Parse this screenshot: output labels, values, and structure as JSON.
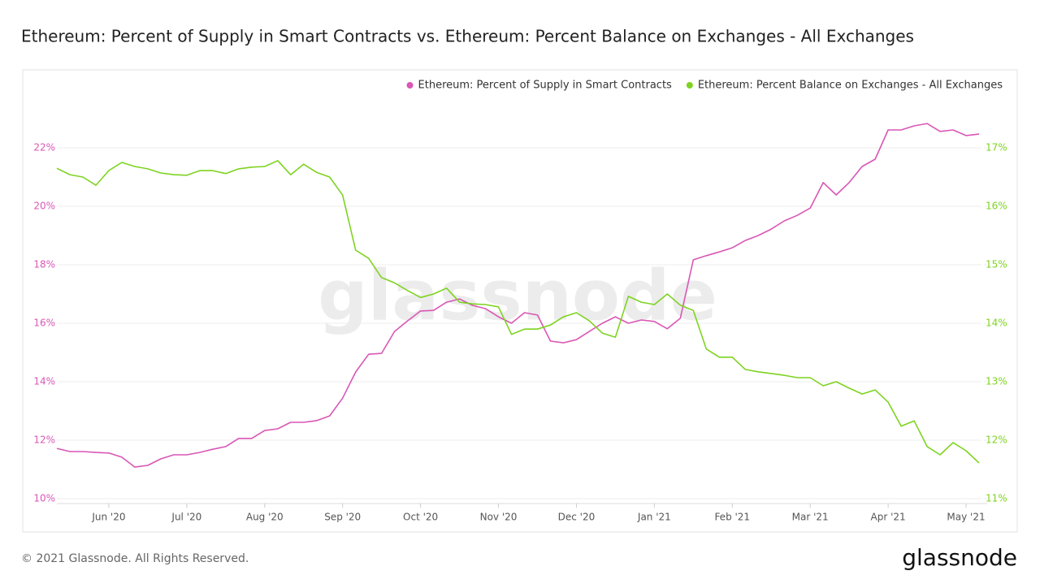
{
  "chart_data": {
    "type": "line",
    "title": "Ethereum: Percent of Supply in Smart Contracts vs. Ethereum: Percent Balance on Exchanges - All Exchanges",
    "watermark": "glassnode",
    "footer": "© 2021 Glassnode. All Rights Reserved.",
    "logo": "glassnode",
    "legend": "top-right",
    "grid": true,
    "categories": [
      null,
      null,
      null,
      null,
      "Jun '20",
      null,
      null,
      null,
      null,
      null,
      "Jul '20",
      null,
      null,
      null,
      null,
      null,
      "Aug '20",
      null,
      null,
      null,
      null,
      null,
      "Sep '20",
      null,
      null,
      null,
      null,
      null,
      "Oct '20",
      null,
      null,
      null,
      null,
      null,
      "Nov '20",
      null,
      null,
      null,
      null,
      null,
      "Dec '20",
      null,
      null,
      null,
      null,
      null,
      "Jan '21",
      null,
      null,
      null,
      null,
      null,
      "Feb '21",
      null,
      null,
      null,
      null,
      null,
      "Mar '21",
      null,
      null,
      null,
      null,
      null,
      "Apr '21",
      null,
      null,
      null,
      null,
      null,
      "May '21",
      null
    ],
    "ylim": [
      10,
      24
    ],
    "yticks": [
      {
        "value": 10,
        "label": "10%"
      },
      {
        "value": 12,
        "label": "12%"
      },
      {
        "value": 14,
        "label": "14%"
      },
      {
        "value": 16,
        "label": "16%"
      },
      {
        "value": 18,
        "label": "18%"
      },
      {
        "value": 20,
        "label": "20%"
      },
      {
        "value": 22,
        "label": "22%"
      }
    ],
    "y2lim": [
      11,
      18
    ],
    "y2ticks": [
      {
        "value": 11,
        "label": "11%"
      },
      {
        "value": 12,
        "label": "12%"
      },
      {
        "value": 13,
        "label": "13%"
      },
      {
        "value": 14,
        "label": "14%"
      },
      {
        "value": 15,
        "label": "15%"
      },
      {
        "value": 16,
        "label": "16%"
      },
      {
        "value": 17,
        "label": "17%"
      }
    ],
    "series": [
      {
        "name": "Ethereum: Percent of Supply in Smart Contracts",
        "color": "#d957b5",
        "axis": "y",
        "values": [
          11.72,
          11.61,
          11.61,
          11.58,
          11.56,
          11.42,
          11.08,
          11.14,
          11.36,
          11.5,
          11.5,
          11.58,
          11.69,
          11.78,
          12.06,
          12.06,
          12.33,
          12.39,
          12.61,
          12.61,
          12.67,
          12.83,
          13.44,
          14.33,
          14.94,
          14.97,
          15.72,
          16.08,
          16.42,
          16.44,
          16.72,
          16.83,
          16.61,
          16.5,
          16.22,
          16.0,
          16.36,
          16.28,
          15.39,
          15.33,
          15.44,
          15.72,
          16.0,
          16.22,
          16.0,
          16.11,
          16.06,
          15.81,
          16.17,
          18.17,
          18.31,
          18.44,
          18.58,
          18.83,
          19.0,
          19.22,
          19.5,
          19.69,
          19.94,
          20.81,
          20.39,
          20.81,
          21.36,
          21.61,
          22.61,
          22.61,
          22.75,
          22.83,
          22.56,
          22.61,
          22.42,
          22.47
        ]
      },
      {
        "name": "Ethereum: Percent Balance on Exchanges - All Exchanges",
        "color": "#7ed321",
        "axis": "y2",
        "values": [
          16.65,
          16.54,
          16.5,
          16.36,
          16.61,
          16.75,
          16.68,
          16.64,
          16.57,
          16.54,
          16.53,
          16.61,
          16.61,
          16.56,
          16.64,
          16.67,
          16.68,
          16.78,
          16.54,
          16.72,
          16.58,
          16.5,
          16.19,
          15.25,
          15.11,
          14.78,
          14.69,
          14.56,
          14.44,
          14.5,
          14.6,
          14.36,
          14.33,
          14.32,
          14.28,
          13.81,
          13.9,
          13.9,
          13.97,
          14.11,
          14.18,
          14.04,
          13.83,
          13.76,
          14.46,
          14.36,
          14.32,
          14.5,
          14.31,
          14.22,
          13.56,
          13.42,
          13.42,
          13.21,
          13.17,
          13.14,
          13.11,
          13.07,
          13.07,
          12.93,
          13.0,
          12.89,
          12.79,
          12.86,
          12.65,
          12.24,
          12.33,
          11.89,
          11.75,
          11.96,
          11.82,
          11.61
        ]
      }
    ]
  }
}
